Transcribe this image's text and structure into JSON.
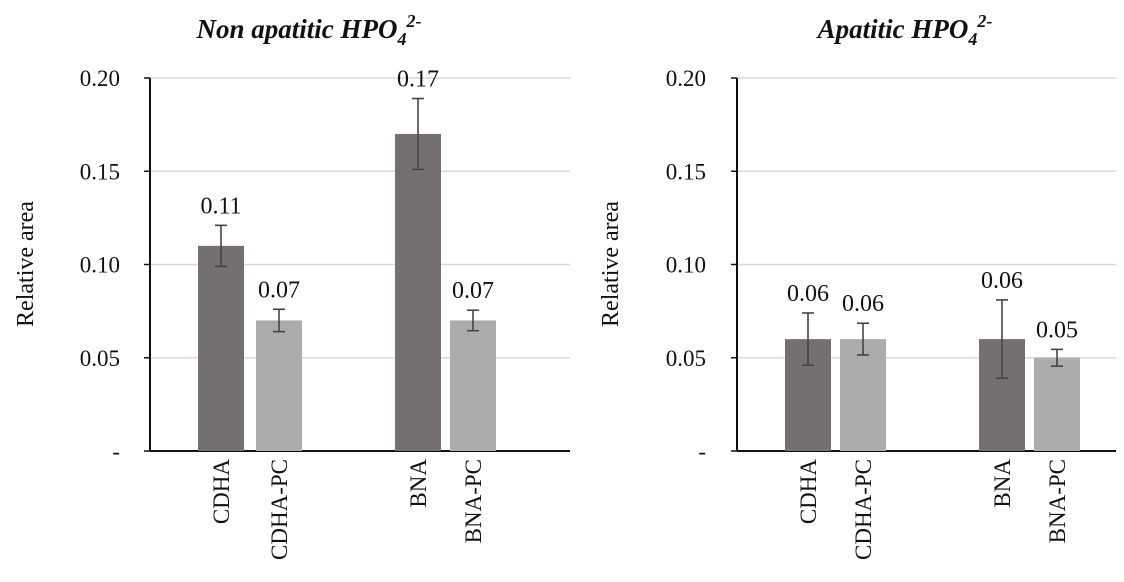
{
  "chart_data": [
    {
      "type": "bar",
      "title": "Non apatitic HPO",
      "title_sub": "4",
      "title_sup": "2-",
      "ylabel": "Relative  area",
      "ylim": [
        0,
        0.2
      ],
      "yticks": [
        0,
        0.05,
        0.1,
        0.15,
        0.2
      ],
      "ytick_labels": [
        "-",
        "0.05",
        "0.10",
        "0.15",
        "0.20"
      ],
      "grid": true,
      "categories": [
        "CDHA",
        "CDHA-PC",
        "BNA",
        "BNA-PC"
      ],
      "values": [
        0.11,
        0.07,
        0.17,
        0.07
      ],
      "errors": [
        0.011,
        0.006,
        0.019,
        0.0055
      ],
      "data_labels": [
        "0.11",
        "0.07",
        "0.17",
        "0.07"
      ],
      "colors": [
        "#757070",
        "#aeabab",
        "#757070",
        "#aeabab"
      ]
    },
    {
      "type": "bar",
      "title": "Apatitic HPO",
      "title_sub": "4",
      "title_sup": "2-",
      "ylabel": "Relative  area",
      "ylim": [
        0,
        0.2
      ],
      "yticks": [
        0,
        0.05,
        0.1,
        0.15,
        0.2
      ],
      "ytick_labels": [
        "-",
        "0.05",
        "0.10",
        "0.15",
        "0.20"
      ],
      "grid": true,
      "categories": [
        "CDHA",
        "CDHA-PC",
        "BNA",
        "BNA-PC"
      ],
      "values": [
        0.06,
        0.06,
        0.06,
        0.05
      ],
      "errors": [
        0.014,
        0.0085,
        0.021,
        0.0045
      ],
      "data_labels": [
        "0.06",
        "0.06",
        "0.06",
        "0.05"
      ],
      "colors": [
        "#757070",
        "#aeabab",
        "#757070",
        "#aeabab"
      ]
    }
  ]
}
